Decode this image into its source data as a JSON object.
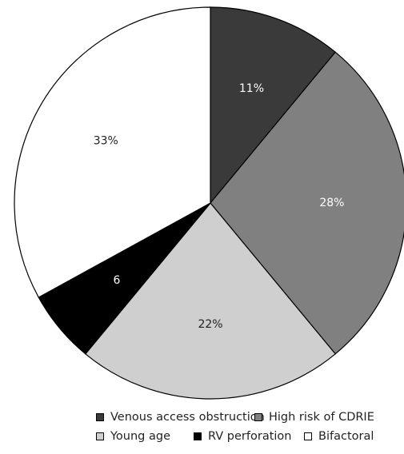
{
  "chart_data": {
    "type": "pie",
    "categories": [
      "Venous access obstruction",
      "High risk of CDRIE",
      "Young age",
      "RV perforation",
      "Bifactoral"
    ],
    "values": [
      11,
      28,
      22,
      6,
      33
    ],
    "labels": [
      "11%",
      "28%",
      "22%",
      "6",
      "33%"
    ],
    "colors": [
      "#3a3a3a",
      "#808080",
      "#cfcfcf",
      "#000000",
      "#ffffff"
    ],
    "label_colors": [
      "#ffffff",
      "#ffffff",
      "#222222",
      "#ffffff",
      "#222222"
    ],
    "start_angle": "12 o'clock",
    "direction": "clockwise",
    "legend_position": "bottom"
  },
  "legend": {
    "row1": [
      "Venous access obstruction",
      "High risk of CDRIE"
    ],
    "row2": [
      "Young age",
      "RV perforation",
      "Bifactoral"
    ]
  }
}
